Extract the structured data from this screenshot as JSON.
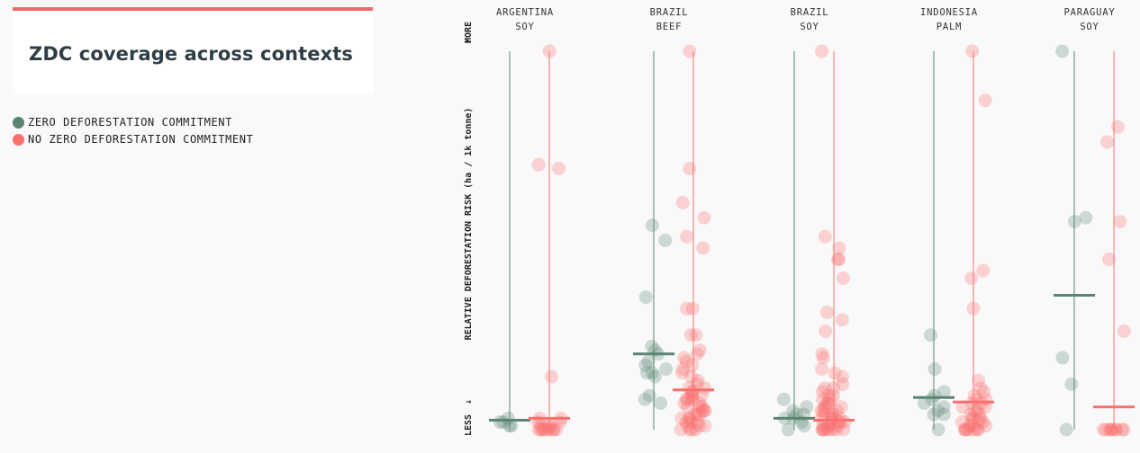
{
  "title": "ZDC coverage across contexts",
  "legend": [
    {
      "label": "ZERO DEFORESTATION COMMITMENT",
      "color": "#5b8572"
    },
    {
      "label": "NO ZERO DEFORESTATION COMMITMENT",
      "color": "#fb6f6f"
    }
  ],
  "chart_data": {
    "type": "scatter",
    "ylabel": "RELATIVE DEFORESTATION RISK (ha / 1k tonne)",
    "y_top_label": "MORE",
    "y_bottom_label": "LESS",
    "y_top_arrow": "↑",
    "y_bottom_arrow": "↓",
    "ylim": [
      0,
      100
    ],
    "series_names": [
      "Zero deforestation commitment",
      "No zero deforestation commitment"
    ],
    "groups": [
      {
        "country": "ARGENTINA",
        "commodity": "SOY",
        "zdc": {
          "values": [
            1,
            1,
            2,
            2,
            3
          ],
          "median": 2.5
        },
        "no_zdc": {
          "values": [
            100,
            70,
            69,
            14,
            0,
            0,
            0,
            0,
            0,
            0,
            0,
            0,
            0,
            1,
            1,
            1,
            2,
            2,
            3,
            3
          ],
          "median": 3
        }
      },
      {
        "country": "BRAZIL",
        "commodity": "BEEF",
        "zdc": {
          "values": [
            54,
            50,
            35,
            22,
            21,
            20,
            18,
            17,
            16,
            15,
            15,
            14,
            9,
            8,
            7
          ],
          "median": 20
        },
        "no_zdc": {
          "values": [
            100,
            69,
            60,
            56,
            51,
            48,
            32,
            32,
            25,
            25,
            21,
            20,
            19,
            18,
            17,
            16,
            15,
            14,
            13,
            12,
            11,
            11,
            10,
            10,
            9,
            9,
            9,
            8,
            8,
            8,
            7,
            7,
            6,
            6,
            6,
            5,
            5,
            5,
            4,
            4,
            4,
            3,
            3,
            3,
            2,
            2,
            2,
            1,
            1,
            1,
            0,
            0,
            0,
            0
          ],
          "median": 10.5
        }
      },
      {
        "country": "BRAZIL",
        "commodity": "SOY",
        "zdc": {
          "values": [
            8,
            6,
            5,
            4,
            4,
            3,
            3,
            2,
            1,
            0
          ],
          "median": 3
        },
        "no_zdc": {
          "values": [
            100,
            51,
            48,
            45,
            45,
            40,
            31,
            29,
            26,
            20,
            19,
            16,
            15,
            14,
            12,
            11,
            11,
            10,
            9,
            9,
            8,
            8,
            7,
            7,
            6,
            6,
            6,
            5,
            5,
            5,
            4,
            4,
            4,
            3,
            3,
            3,
            3,
            2,
            2,
            2,
            2,
            1,
            1,
            1,
            1,
            0,
            0,
            0,
            0,
            0,
            0,
            0,
            0
          ],
          "median": 2.5
        }
      },
      {
        "country": "INDONESIA",
        "commodity": "PALM",
        "zdc": {
          "values": [
            25,
            16,
            10,
            9,
            8,
            7,
            6,
            5,
            4,
            4,
            0
          ],
          "median": 8.5
        },
        "no_zdc": {
          "values": [
            100,
            87,
            42,
            40,
            32,
            13,
            11,
            10,
            9,
            8,
            8,
            7,
            7,
            6,
            6,
            5,
            5,
            4,
            4,
            3,
            3,
            3,
            2,
            2,
            2,
            1,
            1,
            1,
            0,
            0,
            0,
            0,
            0,
            0,
            0
          ],
          "median": 7.3
        }
      },
      {
        "country": "PARAGUAY",
        "commodity": "SOY",
        "zdc": {
          "values": [
            100,
            56,
            55,
            19,
            12,
            0
          ],
          "median": 35.5
        },
        "no_zdc": {
          "values": [
            80,
            76,
            55,
            45,
            26,
            0,
            0,
            0,
            0,
            0,
            0,
            0,
            0,
            0
          ],
          "median": 6
        }
      }
    ]
  }
}
